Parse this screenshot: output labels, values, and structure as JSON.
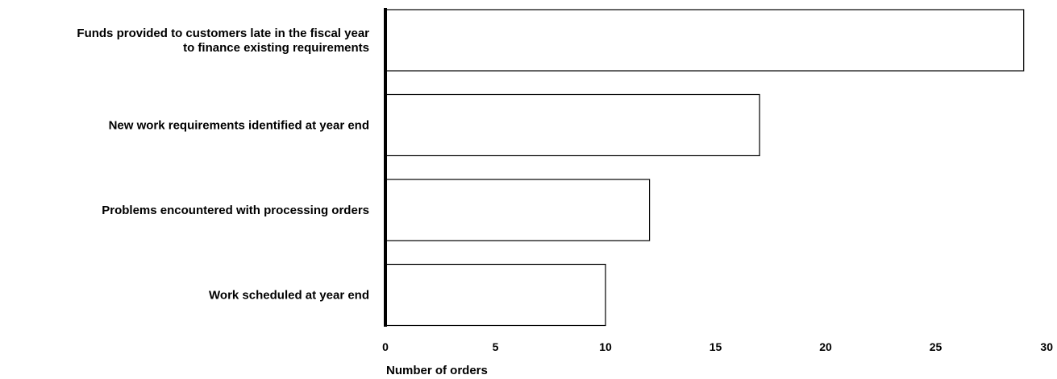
{
  "chart_data": {
    "type": "bar",
    "orientation": "horizontal",
    "categories": [
      [
        "Funds provided to customers late in the fiscal year",
        "to finance existing requirements"
      ],
      [
        "New work requirements identified at year end"
      ],
      [
        "Problems encountered with processing orders"
      ],
      [
        "Work scheduled at year end"
      ]
    ],
    "values": [
      29,
      17,
      12,
      10
    ],
    "title": "",
    "xlabel": "Number of orders",
    "ylabel": "",
    "xlim": [
      0,
      30
    ],
    "xticks": [
      "0",
      "5",
      "10",
      "15",
      "20",
      "25",
      "30"
    ],
    "grid": false,
    "legend": "none",
    "colors": {
      "bar_fill": "#ffffff",
      "bar_stroke": "#000000",
      "axis": "#000000",
      "text": "#000000"
    }
  }
}
